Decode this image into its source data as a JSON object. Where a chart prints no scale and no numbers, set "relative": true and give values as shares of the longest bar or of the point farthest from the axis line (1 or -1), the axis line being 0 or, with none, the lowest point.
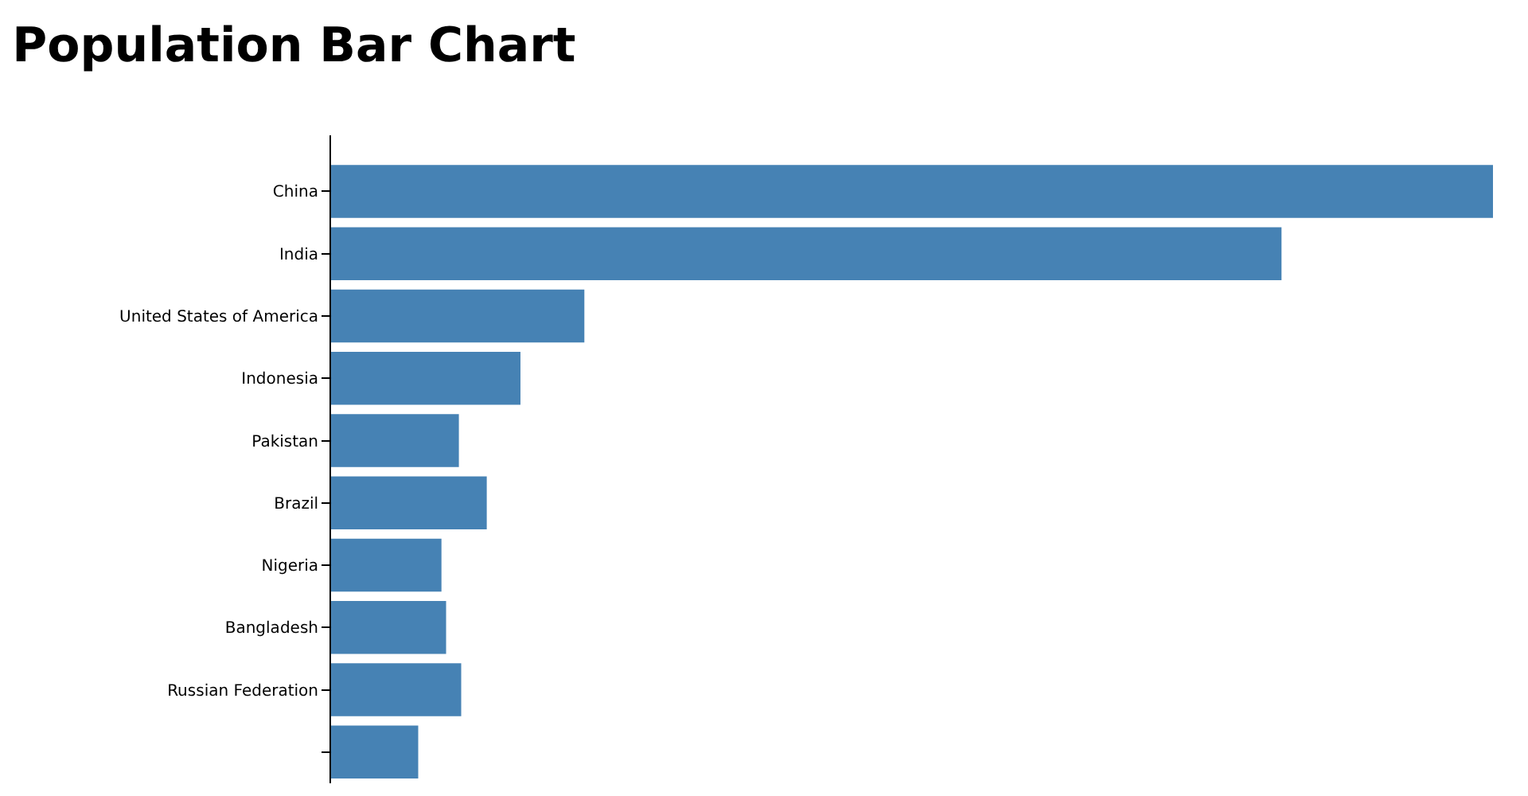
{
  "chart_data": {
    "type": "bar",
    "title": "Population Bar Chart",
    "orientation": "horizontal",
    "relative": true,
    "categories": [
      "China",
      "India",
      "United States of America",
      "Indonesia",
      "Pakistan",
      "Brazil",
      "Nigeria",
      "Bangladesh",
      "Russian Federation",
      null
    ],
    "values": [
      1,
      0.818,
      0.218,
      0.163,
      0.11,
      0.134,
      0.095,
      0.099,
      0.112,
      0.075
    ],
    "color": "#4682b4"
  }
}
